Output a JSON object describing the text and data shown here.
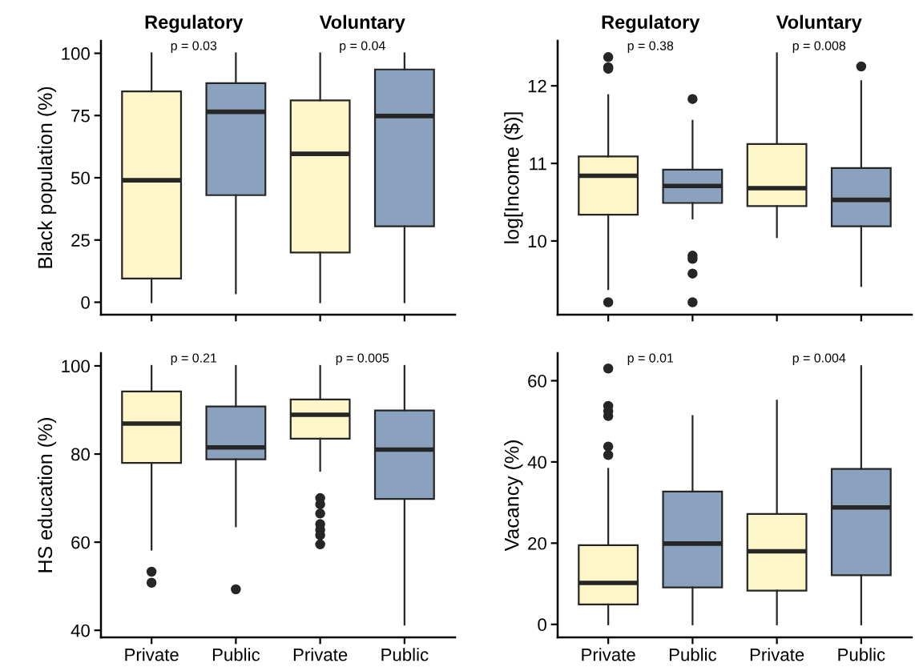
{
  "chart_data": [
    {
      "type": "box",
      "ylabel": "Black population (%)",
      "categories": [
        null,
        null,
        null,
        null
      ],
      "colors": [
        "#fdf6c9",
        "#8aa2be",
        "#fdf6c9",
        "#8aa2be"
      ],
      "ylim": [
        -5,
        105
      ],
      "yticks": [
        0,
        25,
        50,
        75,
        100
      ],
      "tick_labels": "y",
      "annotations": [
        "Regulatory",
        "Voluntary",
        "p = 0.03",
        "p = 0.04"
      ],
      "boxes": [
        {
          "low": 0,
          "q1": 9.5,
          "median": 49,
          "q3": 84.7,
          "high": 100
        },
        {
          "low": 3.6,
          "q1": 43,
          "median": 76.5,
          "q3": 88,
          "high": 100
        },
        {
          "low": 0,
          "q1": 20,
          "median": 59.6,
          "q3": 81.1,
          "high": 100
        },
        {
          "low": 0,
          "q1": 30.5,
          "median": 74.8,
          "q3": 93.5,
          "high": 100
        }
      ]
    },
    {
      "type": "box",
      "ylabel": "log[Income ($)]",
      "categories": [
        null,
        null,
        null,
        null
      ],
      "colors": [
        "#fdf6c9",
        "#8aa2be",
        "#fdf6c9",
        "#8aa2be"
      ],
      "ylim": [
        9.05,
        12.58
      ],
      "yticks": [
        10,
        11,
        12
      ],
      "tick_labels": "y",
      "annotations": [
        "Regulatory",
        "Voluntary",
        "p = 0.38",
        "p = 0.008"
      ],
      "boxes": [
        {
          "low": 9.38,
          "q1": 10.34,
          "median": 10.84,
          "q3": 11.09,
          "high": 11.88,
          "outliers": [
            9.21,
            12.22,
            12.24,
            12.37
          ]
        },
        {
          "low": 10.29,
          "q1": 10.49,
          "median": 10.71,
          "q3": 10.92,
          "high": 11.55,
          "outliers": [
            11.83,
            9.81,
            9.77,
            9.58,
            9.21
          ]
        },
        {
          "low": 10.05,
          "q1": 10.45,
          "median": 10.68,
          "q3": 11.25,
          "high": 12.42
        },
        {
          "low": 9.42,
          "q1": 10.19,
          "median": 10.53,
          "q3": 10.94,
          "high": 12.06,
          "outliers": [
            12.25
          ]
        }
      ]
    },
    {
      "type": "box",
      "ylabel": "HS education (%)",
      "categories": [
        "Private",
        "Public",
        "Private",
        "Public"
      ],
      "colors": [
        "#fdf6c9",
        "#8aa2be",
        "#fdf6c9",
        "#8aa2be"
      ],
      "ylim": [
        38.4,
        102.9
      ],
      "yticks": [
        40,
        60,
        80,
        100
      ],
      "annotations": [
        "p = 0.21",
        "p = 0.005"
      ],
      "boxes": [
        {
          "low": 58.3,
          "q1": 78.0,
          "median": 86.9,
          "q3": 94.2,
          "high": 100,
          "outliers": [
            53.3,
            50.8
          ]
        },
        {
          "low": 63.6,
          "q1": 78.8,
          "median": 81.5,
          "q3": 90.8,
          "high": 100,
          "outliers": [
            49.3
          ]
        },
        {
          "low": 76.2,
          "q1": 83.5,
          "median": 88.9,
          "q3": 92.4,
          "high": 100,
          "outliers": [
            70.0,
            68.6,
            66.5,
            64.1,
            62.8,
            61.6,
            59.5
          ]
        },
        {
          "low": 41.3,
          "q1": 69.8,
          "median": 81.0,
          "q3": 89.9,
          "high": 100
        }
      ]
    },
    {
      "type": "box",
      "ylabel": "Vacancy (%)",
      "categories": [
        "Private",
        "Public",
        "Private",
        "Public"
      ],
      "colors": [
        "#fdf6c9",
        "#8aa2be",
        "#fdf6c9",
        "#8aa2be"
      ],
      "ylim": [
        -3.2,
        66.8
      ],
      "yticks": [
        0,
        20,
        40,
        60
      ],
      "annotations": [
        "p = 0.01",
        "p = 0.004"
      ],
      "boxes": [
        {
          "low": 0,
          "q1": 4.9,
          "median": 10.2,
          "q3": 19.5,
          "high": 38.3,
          "outliers": [
            41.7,
            43.8,
            51.3,
            52.5,
            53.8,
            63.0
          ]
        },
        {
          "low": 0,
          "q1": 9.1,
          "median": 19.9,
          "q3": 32.7,
          "high": 51.3
        },
        {
          "low": 0,
          "q1": 8.3,
          "median": 18.0,
          "q3": 27.2,
          "high": 55.1
        },
        {
          "low": 0,
          "q1": 12.1,
          "median": 28.8,
          "q3": 38.3,
          "high": 63.6
        }
      ]
    }
  ]
}
